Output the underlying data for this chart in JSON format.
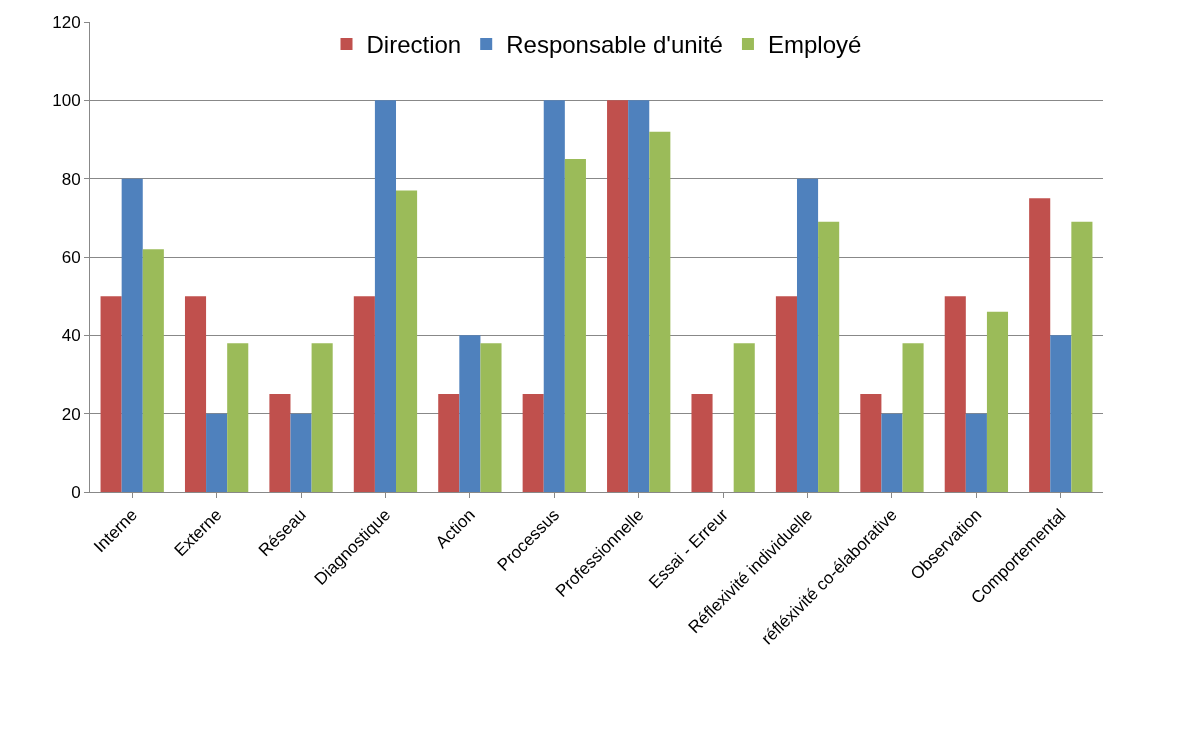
{
  "chart_data": {
    "type": "bar",
    "categories": [
      "Interne",
      "Externe",
      "Réseau",
      "Diagnostique",
      "Action",
      "Processus",
      "Professionnelle",
      "Essai - Erreur",
      "Réflexivité individuelle",
      "réfléxivité co-élaborative",
      "Observation",
      "Comportemental"
    ],
    "series": [
      {
        "name": "Direction",
        "color": "#c0504d",
        "values": [
          50,
          50,
          25,
          50,
          25,
          25,
          100,
          25,
          50,
          25,
          50,
          75
        ]
      },
      {
        "name": "Responsable d'unité",
        "color": "#4f81bd",
        "values": [
          80,
          20,
          20,
          100,
          40,
          100,
          100,
          0,
          80,
          20,
          20,
          40
        ]
      },
      {
        "name": "Employé",
        "color": "#9bbb59",
        "values": [
          62,
          38,
          38,
          77,
          38,
          85,
          92,
          38,
          69,
          38,
          46,
          69
        ]
      }
    ],
    "ylim": [
      0,
      120
    ],
    "yticks": [
      0,
      20,
      40,
      60,
      80,
      100,
      120
    ],
    "grid": "y",
    "legend": "top"
  }
}
